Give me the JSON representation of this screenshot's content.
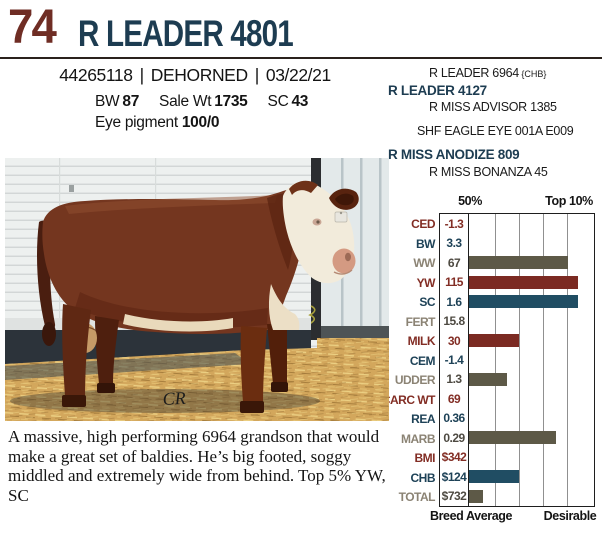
{
  "lot": {
    "number": "74",
    "name": "R LEADER 4801"
  },
  "reg_line": {
    "registration": "44265118",
    "separator": "|",
    "horn_status": "DEHORNED",
    "birth_date": "03/22/21"
  },
  "stats": {
    "bw_label": "BW",
    "bw_value": "87",
    "sale_wt_label": "Sale Wt",
    "sale_wt_value": "1735",
    "sc_label": "SC",
    "sc_value": "43",
    "eye_pigment_label": "Eye pigment",
    "eye_pigment_value": "100/0"
  },
  "pedigree": {
    "rows": [
      {
        "text": "R LEADER 6964",
        "suffix": "{CHB}",
        "style": "ancestor"
      },
      {
        "text": "R LEADER 4127",
        "suffix": "",
        "style": "parent"
      },
      {
        "text": "R MISS ADVISOR 1385",
        "suffix": "",
        "style": "ancestor"
      },
      {
        "text": "SHF EAGLE EYE 001A E009",
        "suffix": "",
        "style": "ancestor"
      },
      {
        "text": "R MISS ANODIZE 809",
        "suffix": "",
        "style": "parent"
      },
      {
        "text": "R MISS BONANZA 45",
        "suffix": "",
        "style": "ancestor"
      }
    ]
  },
  "chart_data": {
    "type": "bar",
    "title": "EPD percentile bar chart",
    "header_left": "50%",
    "header_right": "Top 10%",
    "footer_left": "Breed Average",
    "footer_right": "Desirable",
    "gridline_pcts": [
      20.3,
      39.9,
      59.4,
      78.9
    ],
    "rows": [
      {
        "label": "CED",
        "value": "-1.3",
        "color": "red",
        "bar_pct": 0
      },
      {
        "label": "BW",
        "value": "3.3",
        "color": "blue",
        "bar_pct": 0
      },
      {
        "label": "WW",
        "value": "67",
        "color": "gray",
        "bar_pct": 79
      },
      {
        "label": "YW",
        "value": "115",
        "color": "red",
        "bar_pct": 87.5
      },
      {
        "label": "SC",
        "value": "1.6",
        "color": "blue",
        "bar_pct": 87.5
      },
      {
        "label": "FERT",
        "value": "15.8",
        "color": "gray",
        "bar_pct": 0
      },
      {
        "label": "MILK",
        "value": "30",
        "color": "red",
        "bar_pct": 40
      },
      {
        "label": "CEM",
        "value": "-1.4",
        "color": "blue",
        "bar_pct": 0
      },
      {
        "label": "UDDER",
        "value": "1.3",
        "color": "gray",
        "bar_pct": 30.5
      },
      {
        "label": "CARC WT",
        "value": "69",
        "color": "red",
        "bar_pct": 0
      },
      {
        "label": "REA",
        "value": "0.36",
        "color": "blue",
        "bar_pct": 0
      },
      {
        "label": "MARB",
        "value": "0.29",
        "color": "gray",
        "bar_pct": 69.5
      },
      {
        "label": "BMI",
        "value": "$342",
        "color": "red",
        "bar_pct": 0
      },
      {
        "label": "CHB",
        "value": "$124",
        "color": "blue",
        "bar_pct": 40
      },
      {
        "label": "TOTAL",
        "value": "$732",
        "color": "gray",
        "bar_pct": 11
      }
    ]
  },
  "description": "A massive, high performing 6964 grandson that would make a great set of baldies. He’s big footed, soggy middled and extremely wide from behind. Top 5% YW, SC",
  "photo": {
    "signature": "CR"
  },
  "theme": {
    "lot_number_color": "#6f2d24",
    "title_color": "#1d3c51",
    "red": "#7b2a22",
    "navy_bar": "#204d63",
    "gray_bar": "#5d5947",
    "gray_label": "#8b8374"
  }
}
